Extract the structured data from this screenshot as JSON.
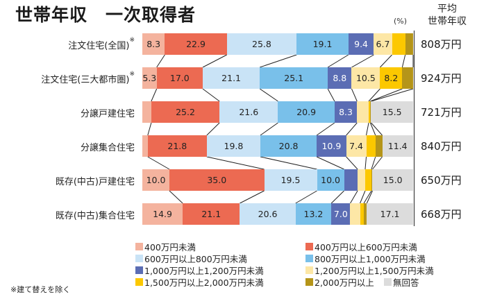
{
  "title": "世帯年収　一次取得者",
  "unit_label": "(%)",
  "avg_header": [
    "平均",
    "世帯年収"
  ],
  "note": "※建て替えを除く",
  "colors": {
    "under400": "#f4b39e",
    "400to600": "#ec6a52",
    "600to800": "#c9e3f6",
    "800to1000": "#79c0ea",
    "1000to1200": "#5b6db4",
    "1200to1500": "#fde7a6",
    "1500to2000": "#fcc800",
    "over2000": "#b59519",
    "no_answer": "#dcdcdc"
  },
  "legend": [
    {
      "key": "under400",
      "label": "400万円未満"
    },
    {
      "key": "400to600",
      "label": "400万円以上600万円未満"
    },
    {
      "key": "600to800",
      "label": "600万円以上800万円未満"
    },
    {
      "key": "800to1000",
      "label": "800万円以上1,000万円未満"
    },
    {
      "key": "1000to1200",
      "label": "1,000万円以上1,200万円未満"
    },
    {
      "key": "1200to1500",
      "label": "1,200万円以上1,500万円未満"
    },
    {
      "key": "1500to2000",
      "label": "1,500万円以上2,000万円未満"
    },
    {
      "key": "over2000",
      "label": "2,000万円以上"
    },
    {
      "key": "no_answer",
      "label": "無回答"
    }
  ],
  "rows": [
    {
      "label": "注文住宅(全国)",
      "asterisk": "※",
      "avg": "808万円"
    },
    {
      "label": "注文住宅(三大都市圏)",
      "asterisk": "※",
      "avg": "924万円"
    },
    {
      "label": "分譲戸建住宅",
      "asterisk": "",
      "avg": "721万円"
    },
    {
      "label": "分譲集合住宅",
      "asterisk": "",
      "avg": "840万円"
    },
    {
      "label": "既存(中古)戸建住宅",
      "asterisk": "",
      "avg": "650万円"
    },
    {
      "label": "既存(中古)集合住宅",
      "asterisk": "",
      "avg": "668万円"
    }
  ],
  "chart_data": {
    "type": "bar",
    "orientation": "horizontal-stacked-100",
    "title": "世帯年収　一次取得者",
    "unit": "%",
    "categories": [
      "注文住宅(全国)※",
      "注文住宅(三大都市圏)※",
      "分譲戸建住宅",
      "分譲集合住宅",
      "既存(中古)戸建住宅",
      "既存(中古)集合住宅"
    ],
    "series": [
      {
        "name": "400万円未満",
        "values": [
          8.3,
          5.3,
          3.3,
          2.0,
          10.0,
          14.9
        ],
        "labels": [
          "8.3",
          "5.3",
          "",
          "",
          "10.0",
          "14.9"
        ]
      },
      {
        "name": "400万円以上600万円未満",
        "values": [
          22.9,
          17.0,
          25.2,
          21.8,
          35.0,
          21.1
        ],
        "labels": [
          "22.9",
          "17.0",
          "25.2",
          "21.8",
          "35.0",
          "21.1"
        ]
      },
      {
        "name": "600万円以上800万円未満",
        "values": [
          25.8,
          21.1,
          21.6,
          19.8,
          19.5,
          20.6
        ],
        "labels": [
          "25.8",
          "21.1",
          "21.6",
          "19.8",
          "19.5",
          "20.6"
        ]
      },
      {
        "name": "800万円以上1,000万円未満",
        "values": [
          19.1,
          25.1,
          20.9,
          20.8,
          10.0,
          13.2
        ],
        "labels": [
          "19.1",
          "25.1",
          "20.9",
          "20.8",
          "10.0",
          "13.2"
        ]
      },
      {
        "name": "1,000万円以上1,200万円未満",
        "values": [
          9.4,
          8.8,
          8.3,
          10.9,
          5.0,
          7.0
        ],
        "labels": [
          "9.4",
          "8.8",
          "8.3",
          "10.9",
          "",
          "7.0"
        ]
      },
      {
        "name": "1,200万円以上1,500万円未満",
        "values": [
          6.7,
          10.5,
          4.3,
          7.4,
          2.8,
          3.6
        ],
        "labels": [
          "6.7",
          "10.5",
          "",
          "7.4",
          "",
          ""
        ]
      },
      {
        "name": "1,500万円以上2,000万円未満",
        "values": [
          4.9,
          8.2,
          0.6,
          3.4,
          2.3,
          1.4
        ],
        "labels": [
          "",
          "8.2",
          "",
          "",
          "",
          ""
        ]
      },
      {
        "name": "2,000万円以上",
        "values": [
          2.9,
          4.0,
          0.3,
          2.5,
          0.4,
          1.1
        ],
        "labels": [
          "",
          "",
          "",
          "",
          "",
          ""
        ]
      },
      {
        "name": "無回答",
        "values": [
          0.0,
          0.0,
          15.5,
          11.4,
          15.0,
          17.1
        ],
        "labels": [
          "",
          "",
          "15.5",
          "11.4",
          "15.0",
          "17.1"
        ]
      }
    ],
    "average_income": [
      "808万円",
      "924万円",
      "721万円",
      "840万円",
      "650万円",
      "668万円"
    ],
    "avg_column_title": "平均世帯年収",
    "legend_position": "bottom",
    "grid": false,
    "xlim": [
      0,
      100
    ],
    "footnote": "※建て替えを除く"
  }
}
